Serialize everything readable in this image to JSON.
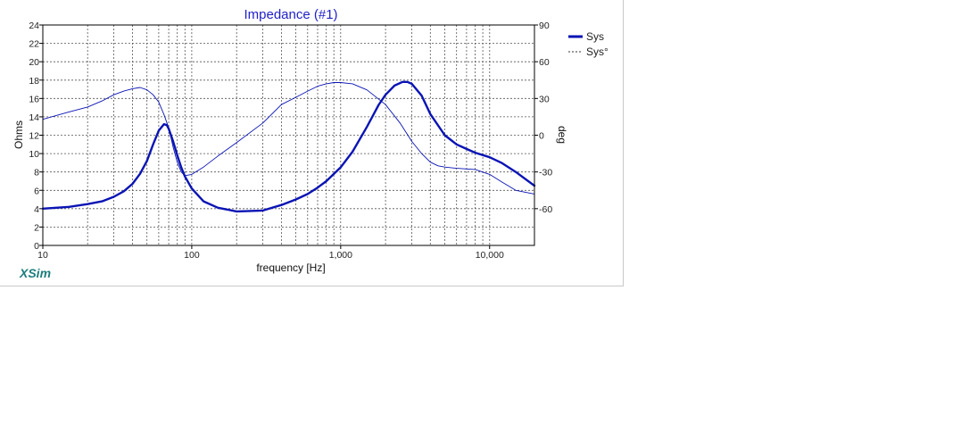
{
  "chart_data": {
    "type": "line",
    "title": "Impedance (#1)",
    "xlabel": "frequency [Hz]",
    "ylabel": "Ohms",
    "y2label": "deg",
    "xscale": "log",
    "xlim": [
      10,
      20000
    ],
    "ylim": [
      0,
      24
    ],
    "y2lim": [
      -90,
      90
    ],
    "grid": true,
    "legend_position": "top-right",
    "x_tick_labels": [
      "10",
      "100",
      "1,000",
      "10,000"
    ],
    "x_tick_values": [
      10,
      100,
      1000,
      10000
    ],
    "y_ticks": [
      0,
      2,
      4,
      6,
      8,
      10,
      12,
      14,
      16,
      18,
      20,
      22,
      24
    ],
    "y2_ticks": [
      -60,
      -30,
      0,
      30,
      60,
      90
    ],
    "series": [
      {
        "name": "Sys",
        "axis": "left",
        "style": "solid-thick",
        "color": "#0a14b4",
        "x": [
          10,
          15,
          20,
          25,
          30,
          35,
          40,
          45,
          50,
          55,
          60,
          65,
          68,
          70,
          75,
          80,
          85,
          90,
          100,
          120,
          150,
          200,
          300,
          400,
          500,
          600,
          700,
          800,
          1000,
          1200,
          1500,
          1800,
          2000,
          2300,
          2600,
          2800,
          3000,
          3500,
          4000,
          5000,
          6000,
          7000,
          8000,
          10000,
          12000,
          15000,
          20000
        ],
        "y": [
          4.0,
          4.2,
          4.5,
          4.8,
          5.3,
          5.9,
          6.7,
          7.8,
          9.2,
          11.0,
          12.5,
          13.2,
          13.1,
          12.7,
          11.3,
          9.8,
          8.5,
          7.5,
          6.2,
          4.8,
          4.1,
          3.7,
          3.8,
          4.4,
          5.0,
          5.6,
          6.3,
          7.0,
          8.5,
          10.2,
          12.9,
          15.3,
          16.4,
          17.4,
          17.8,
          17.8,
          17.6,
          16.3,
          14.3,
          12.0,
          11.0,
          10.5,
          10.1,
          9.6,
          9.0,
          8.0,
          6.5
        ]
      },
      {
        "name": "Sys°",
        "axis": "right",
        "style": "dashed",
        "color": "#0a14b4",
        "x": [
          10,
          15,
          20,
          25,
          30,
          35,
          40,
          45,
          50,
          55,
          60,
          65,
          70,
          75,
          80,
          85,
          90,
          100,
          120,
          150,
          200,
          300,
          400,
          500,
          600,
          700,
          800,
          900,
          1000,
          1200,
          1500,
          2000,
          2500,
          3000,
          3500,
          4000,
          4500,
          5000,
          6000,
          8000,
          10000,
          12000,
          15000,
          20000
        ],
        "y": [
          13,
          19,
          23,
          28,
          33,
          36,
          38,
          39,
          37,
          33,
          27,
          17,
          6,
          -10,
          -22,
          -30,
          -33,
          -32,
          -26,
          -17,
          -6,
          10,
          25,
          31,
          36,
          40,
          42,
          43,
          43,
          42,
          37,
          25,
          10,
          -5,
          -15,
          -22,
          -25,
          -26,
          -27,
          -28,
          -32,
          -38,
          -45,
          -48
        ]
      }
    ]
  }
}
